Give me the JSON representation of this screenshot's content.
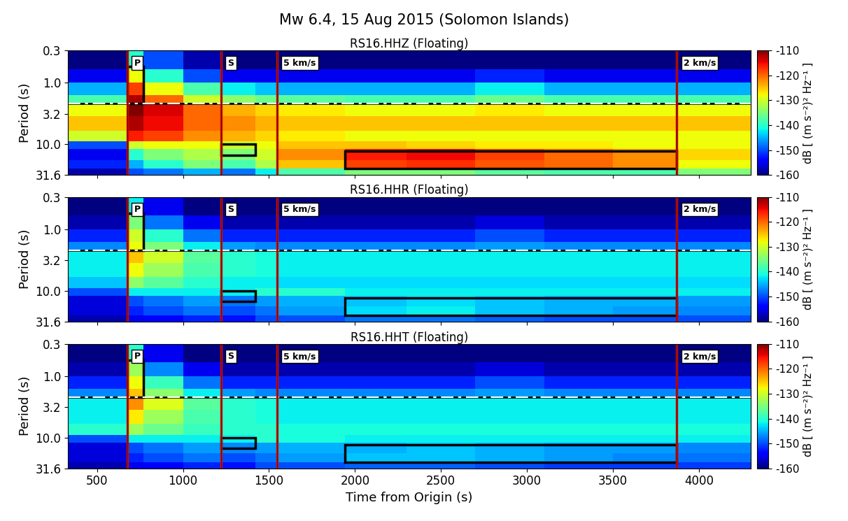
{
  "title": "Mw 6.4, 15 Aug 2015 (Solomon Islands)",
  "chart_data": [
    {
      "type": "heatmap",
      "title": "RS16.HHZ (Floating)",
      "y_label": "Period (s)",
      "xlim": [
        330,
        4300
      ],
      "xticks": [
        500,
        1000,
        1500,
        2000,
        2500,
        3000,
        3500,
        4000
      ],
      "ylim": [
        31.6,
        0.3
      ],
      "log": "y",
      "yticks": [
        0.3,
        {
          "value": 1.0,
          "label": "1.0"
        },
        3.2,
        {
          "value": 10.0,
          "label": "10.0"
        },
        31.6
      ],
      "tick_labels": "y",
      "time_edges": [
        330,
        675,
        770,
        1000,
        1220,
        1420,
        1545,
        1940,
        2300,
        2700,
        3100,
        3500,
        3870,
        4300
      ],
      "period_edges": [
        0.3,
        0.6,
        1.0,
        1.6,
        2.2,
        3.5,
        6.0,
        9.0,
        12.0,
        18.0,
        25.0,
        31.6
      ],
      "cells": [
        [
          -160,
          -140,
          -150,
          -158,
          -160,
          -160,
          -160,
          -160,
          -160,
          -160,
          -160,
          -160,
          -160
        ],
        [
          -155,
          -128,
          -140,
          -150,
          -155,
          -155,
          -155,
          -155,
          -155,
          -152,
          -155,
          -155,
          -155
        ],
        [
          -145,
          -118,
          -128,
          -138,
          -142,
          -144,
          -145,
          -145,
          -145,
          -142,
          -145,
          -145,
          -145
        ],
        [
          -138,
          -112,
          -120,
          -130,
          -134,
          -136,
          -137,
          -138,
          -138,
          -136,
          -138,
          -138,
          -138
        ],
        [
          -128,
          -110,
          -114,
          -120,
          -124,
          -126,
          -127,
          -128,
          -128,
          -127,
          -128,
          -128,
          -128
        ],
        [
          -125,
          -112,
          -115,
          -120,
          -122,
          -124,
          -125,
          -125,
          -125,
          -125,
          -125,
          -125,
          -125
        ],
        [
          -130,
          -116,
          -118,
          -122,
          -124,
          -126,
          -127,
          -128,
          -128,
          -128,
          -128,
          -128,
          -128
        ],
        [
          -150,
          -130,
          -128,
          -128,
          -130,
          -128,
          -125,
          -125,
          -126,
          -127,
          -127,
          -128,
          -128
        ],
        [
          -155,
          -140,
          -135,
          -132,
          -135,
          -130,
          -122,
          -116,
          -115,
          -118,
          -120,
          -122,
          -126
        ],
        [
          -152,
          -145,
          -140,
          -135,
          -138,
          -132,
          -125,
          -118,
          -117,
          -119,
          -120,
          -122,
          -128
        ],
        [
          -158,
          -150,
          -148,
          -145,
          -148,
          -142,
          -138,
          -135,
          -135,
          -137,
          -138,
          -138,
          -135
        ]
      ],
      "colorbar": {
        "label": "dB [ (m s⁻²)² Hz⁻¹ ]",
        "range": [
          -160,
          -110
        ],
        "ticks": [
          -160,
          -150,
          -140,
          -130,
          -120,
          -110
        ]
      },
      "phases": [
        {
          "label": "P",
          "time": 675
        },
        {
          "label": "S",
          "time": 1220
        },
        {
          "label": "5 km/s",
          "time": 1545
        },
        {
          "label": "2 km/s",
          "time": 3870
        }
      ],
      "reference_period": 2.2,
      "boxes": [
        {
          "time": [
            675,
            770
          ],
          "period": [
            0.55,
            2.2
          ]
        },
        {
          "time": [
            1220,
            1420
          ],
          "period": [
            10.0,
            15.0
          ]
        },
        {
          "time": [
            1940,
            3870
          ],
          "period": [
            13.0,
            25.0
          ]
        }
      ]
    },
    {
      "type": "heatmap",
      "title": "RS16.HHR (Floating)",
      "y_label": "Period (s)",
      "xlim": [
        330,
        4300
      ],
      "xticks": [
        500,
        1000,
        1500,
        2000,
        2500,
        3000,
        3500,
        4000
      ],
      "ylim": [
        31.6,
        0.3
      ],
      "log": "y",
      "yticks": [
        0.3,
        {
          "value": 1.0,
          "label": "1.0"
        },
        3.2,
        {
          "value": 10.0,
          "label": "10.0"
        },
        31.6
      ],
      "tick_labels": "y",
      "time_edges": [
        330,
        675,
        770,
        1000,
        1220,
        1420,
        1545,
        1940,
        2300,
        2700,
        3100,
        3500,
        3870,
        4300
      ],
      "period_edges": [
        0.3,
        0.6,
        1.0,
        1.6,
        2.2,
        3.5,
        6.0,
        9.0,
        12.0,
        18.0,
        25.0,
        31.6
      ],
      "cells": [
        [
          -160,
          -142,
          -155,
          -160,
          -160,
          -160,
          -160,
          -160,
          -160,
          -160,
          -160,
          -160,
          -160
        ],
        [
          -158,
          -135,
          -148,
          -155,
          -158,
          -158,
          -158,
          -158,
          -158,
          -156,
          -158,
          -158,
          -158
        ],
        [
          -152,
          -130,
          -140,
          -148,
          -152,
          -152,
          -152,
          -152,
          -152,
          -150,
          -152,
          -152,
          -152
        ],
        [
          -147,
          -128,
          -135,
          -142,
          -146,
          -147,
          -147,
          -147,
          -147,
          -146,
          -147,
          -147,
          -147
        ],
        [
          -142,
          -125,
          -130,
          -137,
          -140,
          -141,
          -142,
          -142,
          -142,
          -142,
          -142,
          -142,
          -142
        ],
        [
          -142,
          -128,
          -133,
          -138,
          -140,
          -141,
          -142,
          -142,
          -142,
          -142,
          -142,
          -142,
          -142
        ],
        [
          -144,
          -134,
          -137,
          -140,
          -142,
          -142,
          -143,
          -143,
          -143,
          -143,
          -143,
          -143,
          -143
        ],
        [
          -150,
          -142,
          -142,
          -142,
          -142,
          -140,
          -140,
          -142,
          -142,
          -142,
          -142,
          -142,
          -142
        ],
        [
          -156,
          -150,
          -148,
          -146,
          -148,
          -146,
          -145,
          -144,
          -143,
          -144,
          -145,
          -145,
          -146
        ],
        [
          -156,
          -152,
          -150,
          -148,
          -150,
          -148,
          -146,
          -143,
          -142,
          -144,
          -145,
          -146,
          -147
        ],
        [
          -158,
          -155,
          -154,
          -152,
          -153,
          -150,
          -150,
          -148,
          -148,
          -149,
          -150,
          -150,
          -150
        ]
      ],
      "colorbar": {
        "label": "dB [ (m s⁻²)² Hz⁻¹ ]",
        "range": [
          -160,
          -110
        ],
        "ticks": [
          -160,
          -150,
          -140,
          -130,
          -120,
          -110
        ]
      },
      "phases": [
        {
          "label": "P",
          "time": 675
        },
        {
          "label": "S",
          "time": 1220
        },
        {
          "label": "5 km/s",
          "time": 1545
        },
        {
          "label": "2 km/s",
          "time": 3870
        }
      ],
      "reference_period": 2.2,
      "boxes": [
        {
          "time": [
            675,
            770
          ],
          "period": [
            0.55,
            2.2
          ]
        },
        {
          "time": [
            1220,
            1420
          ],
          "period": [
            10.0,
            15.0
          ]
        },
        {
          "time": [
            1940,
            3870
          ],
          "period": [
            13.0,
            25.0
          ]
        }
      ]
    },
    {
      "type": "heatmap",
      "title": "RS16.HHT (Floating)",
      "x_label": "Time from Origin (s)",
      "y_label": "Period (s)",
      "xlim": [
        330,
        4300
      ],
      "xticks": [
        500,
        1000,
        1500,
        2000,
        2500,
        3000,
        3500,
        4000
      ],
      "ylim": [
        31.6,
        0.3
      ],
      "log": "y",
      "yticks": [
        0.3,
        {
          "value": 1.0,
          "label": "1.0"
        },
        3.2,
        {
          "value": 10.0,
          "label": "10.0"
        },
        31.6
      ],
      "time_edges": [
        330,
        675,
        770,
        1000,
        1220,
        1420,
        1545,
        1940,
        2300,
        2700,
        3100,
        3500,
        3870,
        4300
      ],
      "period_edges": [
        0.3,
        0.6,
        1.0,
        1.6,
        2.2,
        3.5,
        6.0,
        9.0,
        12.0,
        18.0,
        25.0,
        31.6
      ],
      "cells": [
        [
          -160,
          -140,
          -155,
          -160,
          -160,
          -160,
          -160,
          -160,
          -160,
          -160,
          -160,
          -160,
          -160
        ],
        [
          -158,
          -133,
          -147,
          -155,
          -158,
          -158,
          -158,
          -158,
          -158,
          -156,
          -158,
          -158,
          -158
        ],
        [
          -152,
          -128,
          -139,
          -148,
          -152,
          -152,
          -152,
          -152,
          -152,
          -150,
          -152,
          -152,
          -152
        ],
        [
          -147,
          -125,
          -134,
          -142,
          -146,
          -147,
          -147,
          -147,
          -147,
          -146,
          -147,
          -147,
          -147
        ],
        [
          -142,
          -122,
          -129,
          -137,
          -140,
          -141,
          -142,
          -142,
          -142,
          -142,
          -142,
          -142,
          -142
        ],
        [
          -142,
          -127,
          -133,
          -138,
          -140,
          -141,
          -142,
          -142,
          -142,
          -142,
          -142,
          -142,
          -142
        ],
        [
          -140,
          -133,
          -136,
          -139,
          -140,
          -140,
          -141,
          -141,
          -141,
          -141,
          -141,
          -141,
          -141
        ],
        [
          -150,
          -142,
          -142,
          -142,
          -142,
          -140,
          -141,
          -142,
          -142,
          -142,
          -142,
          -142,
          -142
        ],
        [
          -156,
          -150,
          -148,
          -146,
          -147,
          -146,
          -145,
          -145,
          -144,
          -145,
          -146,
          -146,
          -147
        ],
        [
          -156,
          -152,
          -150,
          -148,
          -150,
          -148,
          -146,
          -144,
          -144,
          -145,
          -146,
          -147,
          -148
        ],
        [
          -158,
          -155,
          -154,
          -152,
          -153,
          -150,
          -150,
          -149,
          -149,
          -150,
          -151,
          -151,
          -151
        ]
      ],
      "colorbar": {
        "label": "dB [ (m s⁻²)² Hz⁻¹ ]",
        "range": [
          -160,
          -110
        ],
        "ticks": [
          -160,
          -150,
          -140,
          -130,
          -120,
          -110
        ]
      },
      "phases": [
        {
          "label": "P",
          "time": 675
        },
        {
          "label": "S",
          "time": 1220
        },
        {
          "label": "5 km/s",
          "time": 1545
        },
        {
          "label": "2 km/s",
          "time": 3870
        }
      ],
      "reference_period": 2.2,
      "boxes": [
        {
          "time": [
            675,
            770
          ],
          "period": [
            0.55,
            2.2
          ]
        },
        {
          "time": [
            1220,
            1420
          ],
          "period": [
            10.0,
            15.0
          ]
        },
        {
          "time": [
            1940,
            3870
          ],
          "period": [
            13.0,
            25.0
          ]
        }
      ]
    }
  ]
}
